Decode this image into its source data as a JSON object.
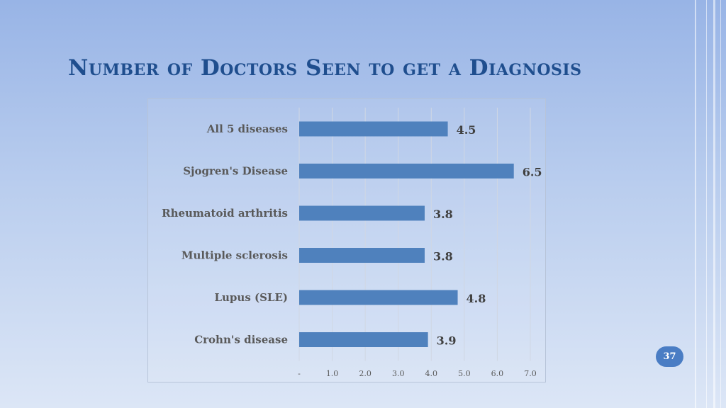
{
  "slide": {
    "title": "Number of Doctors Seen to get a Diagnosis",
    "page_number": "37"
  },
  "colors": {
    "bar": "#4f81bd",
    "title": "#1f4e8e",
    "label": "#595959",
    "value_label": "#404040",
    "gridline": "#d0d7e3",
    "badge": "#4a7dc4"
  },
  "chart_data": {
    "type": "bar",
    "orientation": "horizontal",
    "title": "",
    "xlabel": "",
    "ylabel": "",
    "categories": [
      "All 5 diseases",
      "Sjogren's Disease",
      "Rheumatoid arthritis",
      "Multiple sclerosis",
      "Lupus (SLE)",
      "Crohn's disease"
    ],
    "values": [
      4.5,
      6.5,
      3.8,
      3.8,
      4.8,
      3.9
    ],
    "value_labels": [
      "4.5",
      "6.5",
      "3.8",
      "3.8",
      "4.8",
      "3.9"
    ],
    "xlim": [
      0,
      7
    ],
    "x_ticks": [
      0,
      1,
      2,
      3,
      4,
      5,
      6,
      7
    ],
    "x_tick_labels": [
      "-",
      "1.0",
      "2.0",
      "3.0",
      "4.0",
      "5.0",
      "6.0",
      "7.0"
    ],
    "grid": true,
    "legend": "none"
  }
}
